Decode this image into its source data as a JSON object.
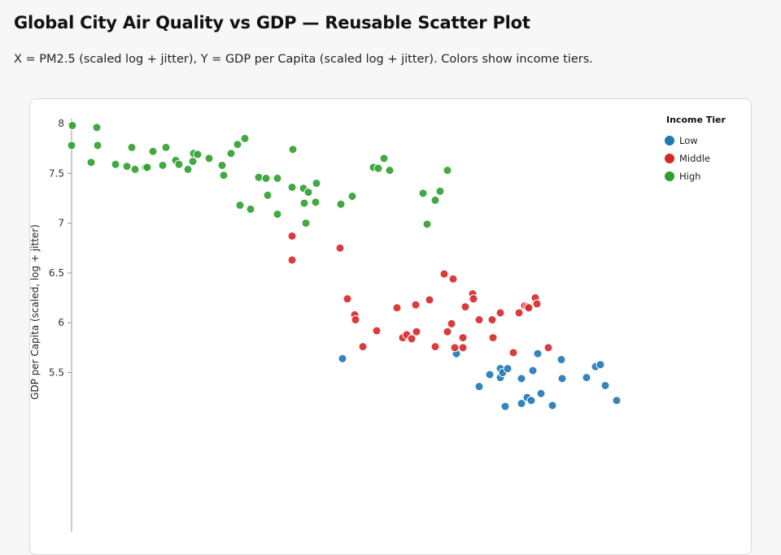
{
  "title": "Global City Air Quality vs GDP — Reusable Scatter Plot",
  "subtitle": "X = PM2.5 (scaled log + jitter), Y = GDP per Capita (scaled log + jitter). Colors show income tiers.",
  "chart_data": {
    "type": "scatter",
    "title": "Global City Air Quality vs GDP",
    "xlabel": "PM2.5 (scaled log + jitter)",
    "ylabel": "GDP per Capita (scaled, log + jitter)",
    "xlim": [
      0,
      8
    ],
    "ylim": [
      3.9,
      8.05
    ],
    "yticks": [
      8,
      7.5,
      7,
      6.5,
      6,
      5.5
    ],
    "ytick_labels": [
      "8",
      "7.5",
      "7",
      "6.5",
      "6",
      "5.5"
    ],
    "grid": false,
    "legend": {
      "title": "Income Tier",
      "placement": "top-right"
    },
    "series": [
      {
        "name": "Low",
        "color": "#1f77b4",
        "points": [
          [
            3.33,
            5.64
          ],
          [
            4.73,
            5.69
          ],
          [
            5.01,
            5.36
          ],
          [
            5.14,
            5.48
          ],
          [
            5.27,
            5.45
          ],
          [
            5.27,
            5.54
          ],
          [
            5.3,
            5.5
          ],
          [
            5.36,
            5.54
          ],
          [
            5.53,
            5.44
          ],
          [
            5.53,
            5.19
          ],
          [
            5.6,
            5.25
          ],
          [
            5.65,
            5.22
          ],
          [
            5.67,
            5.52
          ],
          [
            5.73,
            5.69
          ],
          [
            5.77,
            5.29
          ],
          [
            5.91,
            5.17
          ],
          [
            6.02,
            5.63
          ],
          [
            6.03,
            5.44
          ],
          [
            5.33,
            5.16
          ],
          [
            6.33,
            5.45
          ],
          [
            6.44,
            5.56
          ],
          [
            6.5,
            5.58
          ],
          [
            6.56,
            5.37
          ],
          [
            6.7,
            5.22
          ]
        ]
      },
      {
        "name": "Middle",
        "color": "#d62728",
        "points": [
          [
            2.71,
            6.87
          ],
          [
            2.71,
            6.63
          ],
          [
            3.3,
            6.75
          ],
          [
            3.39,
            6.24
          ],
          [
            3.48,
            6.08
          ],
          [
            3.49,
            6.03
          ],
          [
            3.58,
            5.76
          ],
          [
            3.75,
            5.92
          ],
          [
            4.0,
            6.15
          ],
          [
            4.07,
            5.85
          ],
          [
            4.12,
            5.88
          ],
          [
            4.18,
            5.84
          ],
          [
            4.23,
            6.18
          ],
          [
            4.24,
            5.91
          ],
          [
            4.4,
            6.23
          ],
          [
            4.47,
            5.76
          ],
          [
            4.58,
            6.49
          ],
          [
            4.62,
            5.91
          ],
          [
            4.67,
            5.99
          ],
          [
            4.69,
            6.44
          ],
          [
            4.71,
            5.75
          ],
          [
            4.81,
            5.85
          ],
          [
            4.81,
            5.75
          ],
          [
            4.84,
            6.16
          ],
          [
            4.93,
            6.29
          ],
          [
            4.94,
            6.24
          ],
          [
            5.01,
            6.03
          ],
          [
            5.17,
            6.03
          ],
          [
            5.18,
            5.85
          ],
          [
            5.27,
            6.1
          ],
          [
            5.43,
            5.7
          ],
          [
            5.5,
            6.1
          ],
          [
            5.57,
            6.17
          ],
          [
            5.6,
            6.16
          ],
          [
            5.62,
            6.15
          ],
          [
            5.7,
            6.25
          ],
          [
            5.72,
            6.19
          ],
          [
            5.86,
            5.75
          ]
        ]
      },
      {
        "name": "High",
        "color": "#2ca02c",
        "points": [
          [
            0.01,
            7.98
          ],
          [
            0.0,
            7.78
          ],
          [
            0.31,
            7.96
          ],
          [
            0.32,
            7.78
          ],
          [
            0.24,
            7.61
          ],
          [
            0.54,
            7.59
          ],
          [
            0.68,
            7.57
          ],
          [
            0.74,
            7.76
          ],
          [
            0.78,
            7.54
          ],
          [
            0.91,
            7.56
          ],
          [
            0.93,
            7.56
          ],
          [
            1.0,
            7.72
          ],
          [
            1.12,
            7.58
          ],
          [
            1.16,
            7.76
          ],
          [
            1.28,
            7.63
          ],
          [
            1.32,
            7.59
          ],
          [
            1.43,
            7.54
          ],
          [
            1.49,
            7.62
          ],
          [
            1.5,
            7.7
          ],
          [
            1.55,
            7.69
          ],
          [
            1.69,
            7.65
          ],
          [
            1.85,
            7.58
          ],
          [
            1.87,
            7.48
          ],
          [
            1.96,
            7.7
          ],
          [
            2.04,
            7.79
          ],
          [
            2.13,
            7.85
          ],
          [
            2.07,
            7.18
          ],
          [
            2.2,
            7.14
          ],
          [
            2.3,
            7.46
          ],
          [
            2.39,
            7.45
          ],
          [
            2.41,
            7.28
          ],
          [
            2.53,
            7.45
          ],
          [
            2.53,
            7.09
          ],
          [
            2.72,
            7.74
          ],
          [
            2.71,
            7.36
          ],
          [
            2.85,
            7.35
          ],
          [
            2.86,
            7.2
          ],
          [
            2.88,
            7.0
          ],
          [
            2.91,
            7.31
          ],
          [
            3.01,
            7.4
          ],
          [
            3.0,
            7.21
          ],
          [
            3.31,
            7.19
          ],
          [
            3.45,
            7.27
          ],
          [
            3.71,
            7.56
          ],
          [
            3.77,
            7.55
          ],
          [
            3.84,
            7.65
          ],
          [
            3.91,
            7.53
          ],
          [
            4.32,
            7.3
          ],
          [
            4.37,
            6.99
          ],
          [
            4.47,
            7.23
          ],
          [
            4.53,
            7.32
          ],
          [
            4.62,
            7.53
          ]
        ]
      }
    ]
  }
}
